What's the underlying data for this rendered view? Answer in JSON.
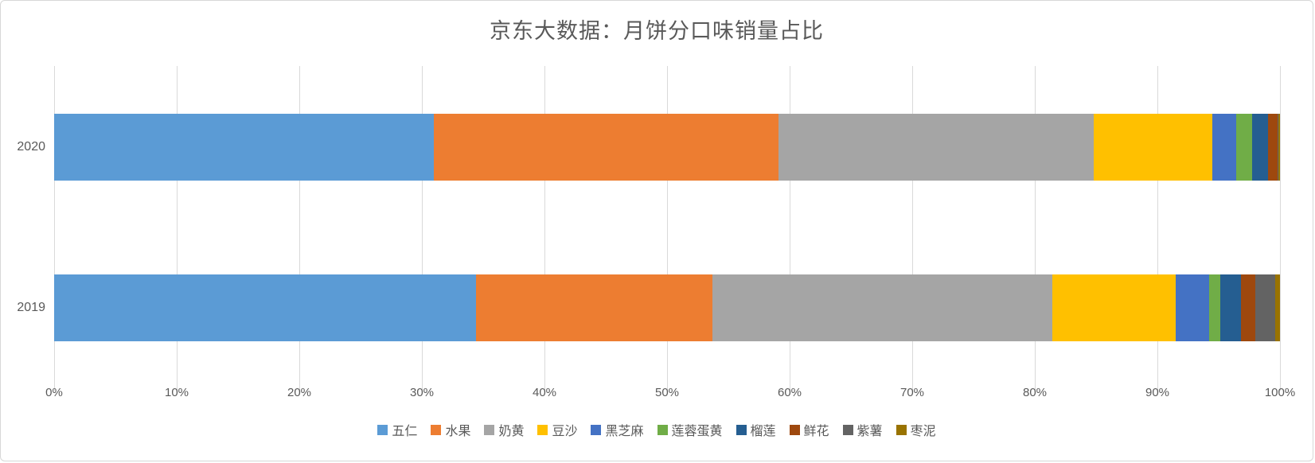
{
  "title": "京东大数据：月饼分口味销量占比",
  "text_color": "#595959",
  "grid_color": "#d9d9d9",
  "chart_data": {
    "type": "bar",
    "orientation": "horizontal",
    "stacked": true,
    "title": "京东大数据：月饼分口味销量占比",
    "categories": [
      "2020",
      "2019"
    ],
    "series": [
      {
        "name": "五仁",
        "color": "#5B9BD5",
        "values": [
          31.0,
          34.4
        ]
      },
      {
        "name": "水果",
        "color": "#ED7D31",
        "values": [
          28.1,
          19.3
        ]
      },
      {
        "name": "奶黄",
        "color": "#A5A5A5",
        "values": [
          25.7,
          27.7
        ]
      },
      {
        "name": "豆沙",
        "color": "#FFC000",
        "values": [
          9.7,
          10.1
        ]
      },
      {
        "name": "黑芝麻",
        "color": "#4472C4",
        "values": [
          1.9,
          2.7
        ]
      },
      {
        "name": "莲蓉蛋黄",
        "color": "#70AD47",
        "values": [
          1.3,
          0.9
        ]
      },
      {
        "name": "榴莲",
        "color": "#255E91",
        "values": [
          1.3,
          1.7
        ]
      },
      {
        "name": "鲜花",
        "color": "#9E480E",
        "values": [
          0.8,
          1.2
        ]
      },
      {
        "name": "紫薯",
        "color": "#636363",
        "values": [
          0.1,
          1.6
        ]
      },
      {
        "name": "枣泥",
        "color": "#997300",
        "values": [
          0.1,
          0.4
        ]
      }
    ],
    "x_ticks": [
      "0%",
      "10%",
      "20%",
      "30%",
      "40%",
      "50%",
      "60%",
      "70%",
      "80%",
      "90%",
      "100%"
    ],
    "xlim": [
      0,
      100
    ],
    "grid": true,
    "legend_position": "bottom"
  }
}
